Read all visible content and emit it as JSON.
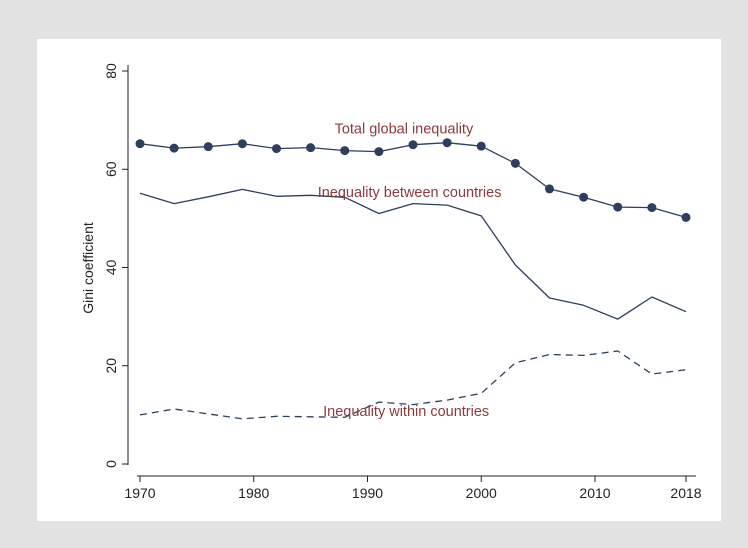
{
  "chart_data": {
    "type": "line",
    "title": "",
    "xlabel": "",
    "ylabel": "Gini coefficient",
    "xlim": [
      1970,
      2018
    ],
    "ylim": [
      0,
      80
    ],
    "x_ticks": [
      1970,
      1980,
      1990,
      2000,
      2010,
      2018
    ],
    "y_ticks": [
      0,
      20,
      40,
      60,
      80
    ],
    "grid": false,
    "legend": "none",
    "x": [
      1970,
      1973,
      1976,
      1979,
      1982,
      1985,
      1988,
      1991,
      1994,
      1997,
      2000,
      2003,
      2006,
      2009,
      2012,
      2015,
      2018
    ],
    "series": [
      {
        "name": "Total global inequality",
        "style": "solid-with-markers",
        "color": "#2d3e5e",
        "label_color": "#8b3a3e",
        "values": [
          65.2,
          64.3,
          64.6,
          65.2,
          64.2,
          64.4,
          63.8,
          63.6,
          65.0,
          65.4,
          64.7,
          61.2,
          56.0,
          54.3,
          52.3,
          52.2,
          50.2
        ]
      },
      {
        "name": "Inequality between countries",
        "style": "solid",
        "color": "#2d3e5e",
        "label_color": "#8b3a3e",
        "values": [
          55.1,
          53.0,
          54.4,
          55.9,
          54.5,
          54.7,
          54.3,
          51.0,
          53.0,
          52.7,
          50.5,
          40.5,
          33.8,
          32.3,
          29.5,
          34.0,
          31.0
        ]
      },
      {
        "name": "Inequality within countries",
        "style": "dashed",
        "color": "#2d3e5e",
        "label_color": "#8b3a3e",
        "values": [
          10.0,
          11.2,
          10.2,
          9.2,
          9.7,
          9.6,
          9.5,
          12.6,
          12.1,
          13.0,
          14.4,
          20.6,
          22.3,
          22.1,
          23.0,
          18.3,
          19.2
        ]
      }
    ]
  }
}
